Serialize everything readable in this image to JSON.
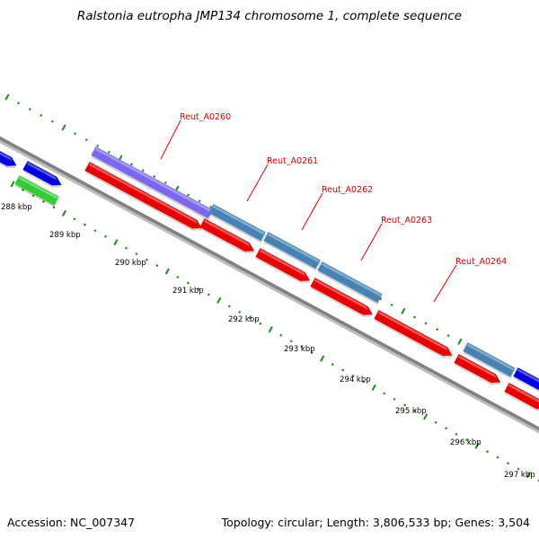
{
  "title": "Ralstonia eutropha JMP134 chromosome 1, complete sequence",
  "accession": "Accession: NC_007347",
  "summary": "Topology: circular; Length: 3,806,533 bp; Genes: 3,504",
  "colors": {
    "backbone": "#808080",
    "forward_gene": "#e60000",
    "feature_blue": "#0000dd",
    "feature_steel": "#4682b4",
    "feature_purple": "#7b68ee",
    "feature_green": "#32cd32",
    "tick": "#1a8a1a",
    "label": "#e00000"
  },
  "ruler": {
    "tick_labels": [
      "288 kbp",
      "289 kbp",
      "290 kbp",
      "291 kbp",
      "292 kbp",
      "293 kbp",
      "294 kbp",
      "295 kbp",
      "296 kbp",
      "297 kbp"
    ]
  },
  "gene_labels": [
    "Reut_A0260",
    "Reut_A0261",
    "Reut_A0262",
    "Reut_A0263",
    "Reut_A0264"
  ]
}
